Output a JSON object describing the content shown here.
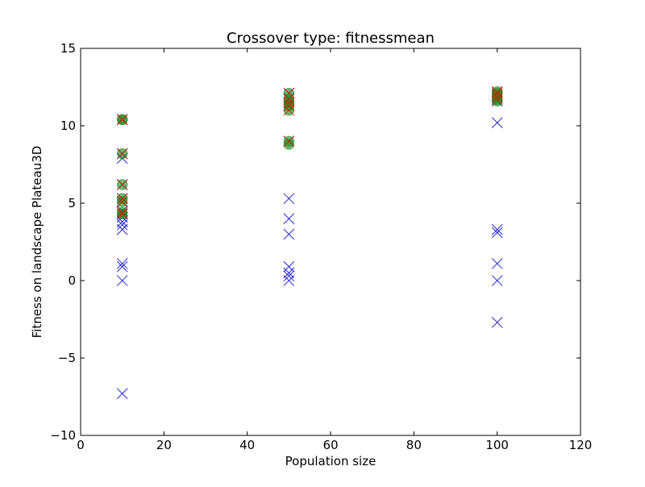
{
  "chart_data": {
    "type": "scatter",
    "title": "Crossover type: fitnessmean",
    "xlabel": "Population size",
    "ylabel": "Fitness on landscape Plateau3D",
    "xlim": [
      0,
      120
    ],
    "ylim": [
      -10,
      15
    ],
    "x_ticks": [
      0,
      20,
      40,
      60,
      80,
      100,
      120
    ],
    "y_ticks": [
      -10,
      -5,
      0,
      5,
      10,
      15
    ],
    "x_tick_labels": [
      "0",
      "20",
      "40",
      "60",
      "80",
      "100",
      "120"
    ],
    "y_tick_labels": [
      "−10",
      "−5",
      "0",
      "5",
      "10",
      "15"
    ],
    "grid": false,
    "colors": {
      "blue_x": "#0000cc",
      "green_dot": "#228b22",
      "red_x": "#cc2200"
    },
    "series": [
      {
        "marker": "x",
        "color": "blue_x",
        "points": [
          [
            10,
            10.4
          ],
          [
            10,
            8.2
          ],
          [
            10,
            7.9
          ],
          [
            10,
            6.2
          ],
          [
            10,
            5.3
          ],
          [
            10,
            5.1
          ],
          [
            10,
            4.5
          ],
          [
            10,
            4.3
          ],
          [
            10,
            4.1
          ],
          [
            10,
            3.8
          ],
          [
            10,
            3.6
          ],
          [
            10,
            3.3
          ],
          [
            10,
            1.1
          ],
          [
            10,
            0.9
          ],
          [
            10,
            0.0
          ],
          [
            10,
            -7.3
          ],
          [
            50,
            12.1
          ],
          [
            50,
            11.8
          ],
          [
            50,
            11.5
          ],
          [
            50,
            11.3
          ],
          [
            50,
            9.0
          ],
          [
            50,
            5.3
          ],
          [
            50,
            4.0
          ],
          [
            50,
            3.0
          ],
          [
            50,
            0.9
          ],
          [
            50,
            0.5
          ],
          [
            50,
            0.3
          ],
          [
            50,
            0.0
          ],
          [
            100,
            12.2
          ],
          [
            100,
            12.0
          ],
          [
            100,
            11.8
          ],
          [
            100,
            11.6
          ],
          [
            100,
            10.2
          ],
          [
            100,
            3.3
          ],
          [
            100,
            3.1
          ],
          [
            100,
            1.1
          ],
          [
            100,
            0.0
          ],
          [
            100,
            -2.7
          ]
        ]
      },
      {
        "marker": "o",
        "color": "green_dot",
        "points": [
          [
            10,
            10.4
          ],
          [
            10,
            10.4
          ],
          [
            10,
            8.2
          ],
          [
            10,
            6.2
          ],
          [
            10,
            5.3
          ],
          [
            10,
            5.1
          ],
          [
            10,
            4.4
          ],
          [
            10,
            4.3
          ],
          [
            50,
            12.1
          ],
          [
            50,
            11.7
          ],
          [
            50,
            11.5
          ],
          [
            50,
            11.3
          ],
          [
            50,
            11.0
          ],
          [
            50,
            9.0
          ],
          [
            50,
            8.8
          ],
          [
            100,
            12.2
          ],
          [
            100,
            12.1
          ],
          [
            100,
            11.9
          ],
          [
            100,
            11.7
          ],
          [
            100,
            11.6
          ]
        ]
      },
      {
        "marker": "x",
        "color": "red_x",
        "points": [
          [
            10,
            10.4
          ],
          [
            10,
            10.4
          ],
          [
            10,
            8.2
          ],
          [
            10,
            6.2
          ],
          [
            10,
            5.3
          ],
          [
            10,
            5.1
          ],
          [
            10,
            4.4
          ],
          [
            10,
            4.3
          ],
          [
            50,
            12.1
          ],
          [
            50,
            11.7
          ],
          [
            50,
            11.5
          ],
          [
            50,
            11.3
          ],
          [
            50,
            11.0
          ],
          [
            50,
            9.0
          ],
          [
            100,
            12.2
          ],
          [
            100,
            12.1
          ],
          [
            100,
            11.9
          ],
          [
            100,
            11.7
          ]
        ]
      }
    ]
  }
}
